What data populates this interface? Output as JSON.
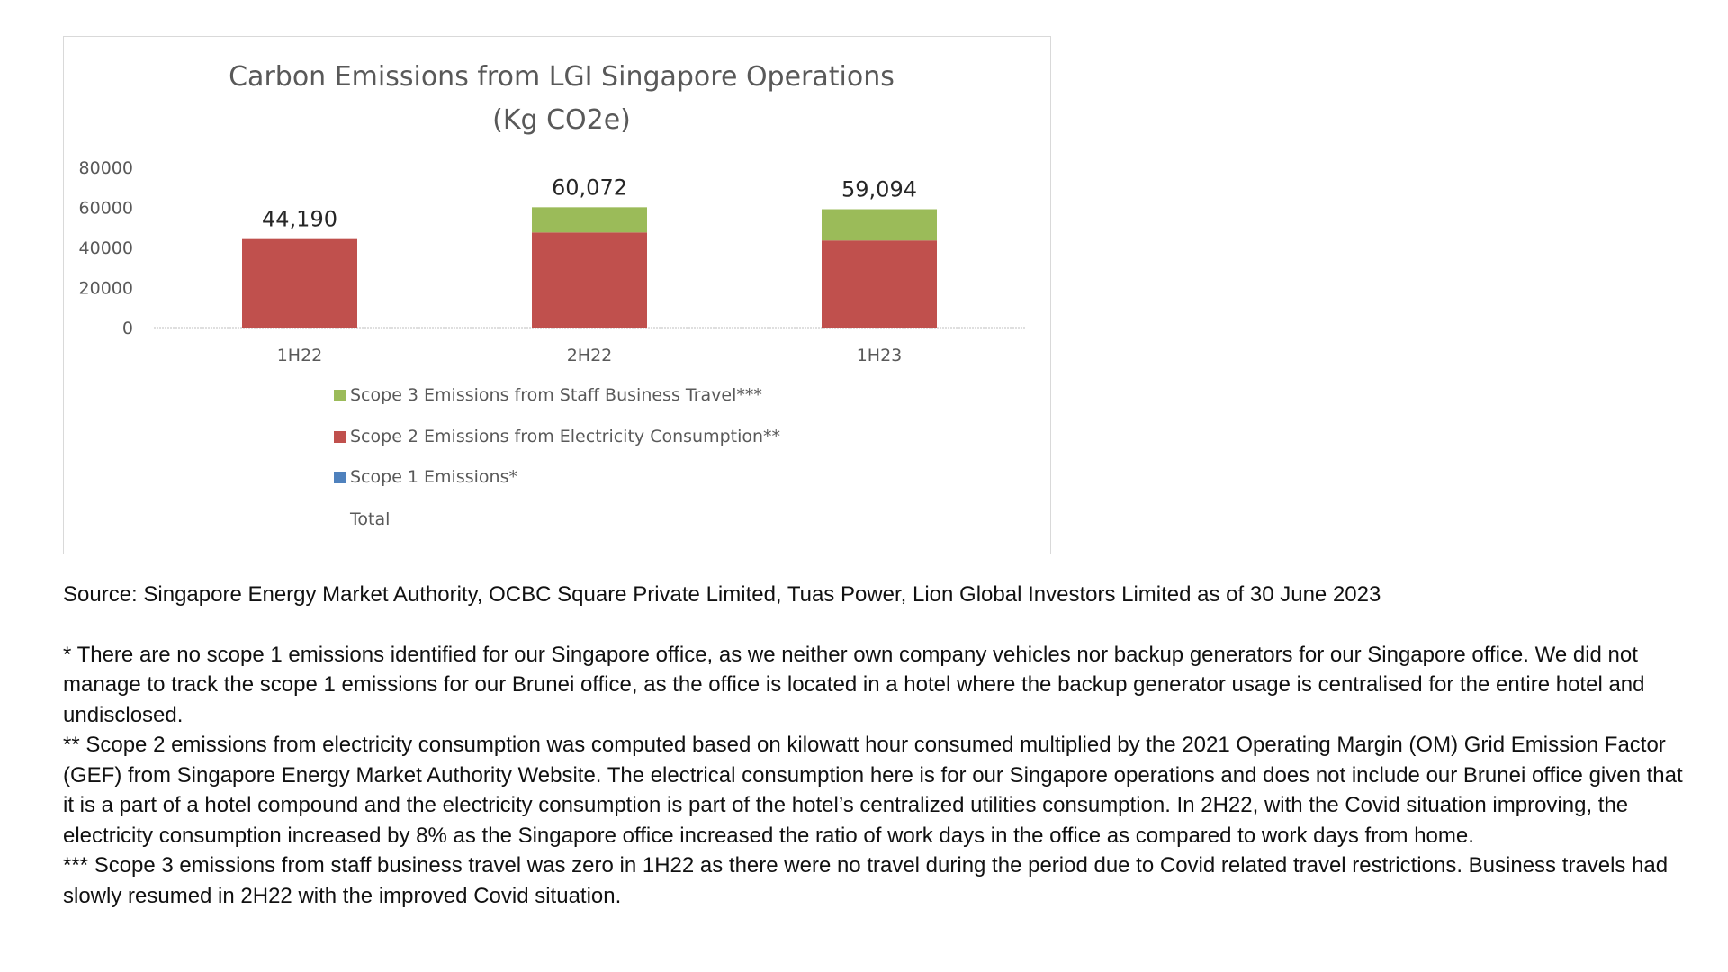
{
  "chart_data": {
    "type": "bar",
    "stacked": true,
    "title": "Carbon Emissions from LGI Singapore Operations",
    "subtitle": "(Kg CO2e)",
    "categories": [
      "1H22",
      "2H22",
      "1H23"
    ],
    "series": [
      {
        "name": "Scope 1 Emissions*",
        "values": [
          0,
          0,
          0
        ],
        "color": "#4f81bd"
      },
      {
        "name": "Scope 2 Emissions from Electricity Consumption**",
        "values": [
          44190,
          47500,
          43500
        ],
        "color": "#c0504d"
      },
      {
        "name": "Scope 3 Emissions from Staff Business Travel***",
        "values": [
          0,
          12572,
          15594
        ],
        "color": "#9bbb59"
      }
    ],
    "totals": [
      44190,
      60072,
      59094
    ],
    "total_labels": [
      "44,190",
      "60,072",
      "59,094"
    ],
    "legend_total_label": "Total",
    "yticks": [
      "80000",
      "60000",
      "40000",
      "20000",
      "0"
    ],
    "ylim": [
      0,
      80000
    ],
    "legend_position": "bottom",
    "grid": false
  },
  "notes": {
    "source": "Source: Singapore Energy Market Authority, OCBC Square Private Limited, Tuas Power, Lion Global Investors Limited as of 30 June 2023",
    "scope1": "* There are no scope 1 emissions identified for our Singapore office, as we neither own company vehicles nor backup generators for our Singapore office. We did not manage to track the scope 1 emissions for our Brunei office, as the office is located in a hotel where the backup generator usage is centralised for the entire hotel and undisclosed.",
    "scope2": "** Scope 2 emissions from electricity consumption was computed based on kilowatt hour consumed multiplied by the 2021 Operating Margin (OM) Grid Emission Factor (GEF) from Singapore Energy Market Authority Website. The electrical consumption here is for our Singapore operations and does not include our Brunei office given that it is a part of a hotel compound and the electricity consumption is part of the hotel’s centralized utilities consumption. In 2H22, with the Covid situation improving, the electricity consumption increased by 8% as the Singapore office increased the ratio of work days in the office as compared to work days from home.",
    "scope3": "*** Scope 3 emissions from staff business travel was zero in 1H22 as there were no travel during the period due to Covid related travel restrictions. Business travels had slowly resumed in 2H22 with the improved Covid situation."
  }
}
